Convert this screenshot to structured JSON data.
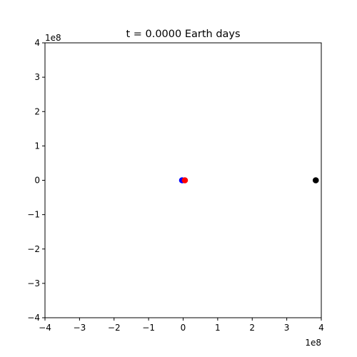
{
  "chart_data": {
    "type": "scatter",
    "title": "t = 0.0000 Earth days",
    "x_range": [
      -4,
      4
    ],
    "y_range": [
      -4,
      4
    ],
    "scale_factor": "1e8",
    "x_ticks": [
      -4,
      -3,
      -2,
      -1,
      0,
      1,
      2,
      3,
      4
    ],
    "y_ticks": [
      -4,
      -3,
      -2,
      -1,
      0,
      1,
      2,
      3,
      4
    ],
    "x_tick_labels": [
      "−4",
      "−3",
      "−2",
      "−1",
      "0",
      "1",
      "2",
      "3",
      "4"
    ],
    "y_tick_labels": [
      "−4",
      "−3",
      "−2",
      "−1",
      "0",
      "1",
      "2",
      "3",
      "4"
    ],
    "grid": false,
    "points": [
      {
        "x": -0.03,
        "y": 0,
        "color": "#0000ff"
      },
      {
        "x": 0.05,
        "y": 0,
        "color": "#ff0000"
      },
      {
        "x": 3.84,
        "y": 0,
        "color": "#000000"
      }
    ]
  }
}
